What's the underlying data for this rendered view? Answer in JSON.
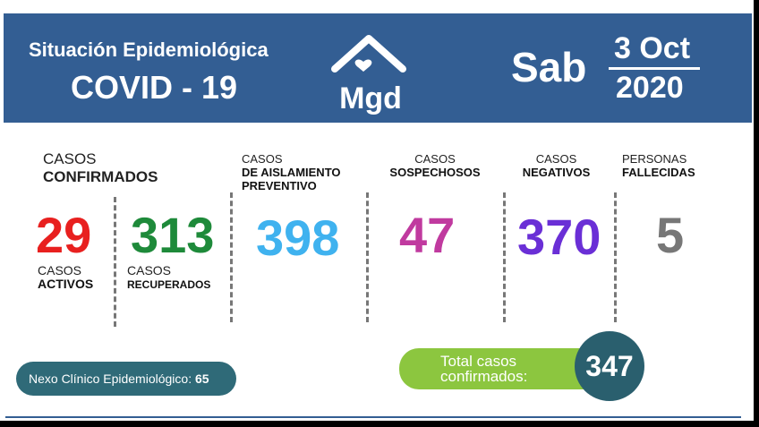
{
  "header": {
    "title_line1": "Situación Epidemiológica",
    "title_line2": "COVID - 19",
    "logo": "Mgd",
    "day": "Sab",
    "date": "3 Oct",
    "year": "2020"
  },
  "stats": {
    "confirmed": {
      "line1": "CASOS",
      "line2": "CONFIRMADOS"
    },
    "active": {
      "value": 29,
      "line1": "CASOS",
      "line2": "ACTIVOS"
    },
    "recovered": {
      "value": 313,
      "line1": "CASOS",
      "line2": "RECUPERADOS"
    },
    "isolation": {
      "line1": "CASOS",
      "line2": "DE AISLAMIENTO",
      "line3": "PREVENTIVO",
      "value": 398
    },
    "suspected": {
      "line1": "CASOS",
      "line2": "SOSPECHOSOS",
      "value": 47
    },
    "negative": {
      "line1": "CASOS",
      "line2": "NEGATIVOS",
      "value": 370
    },
    "deceased": {
      "line1": "PERSONAS",
      "line2": "FALLECIDAS",
      "value": 5
    }
  },
  "footer": {
    "nexo_label": "Nexo Clínico Epidemiológico:",
    "nexo_value": 65,
    "total_line1": "Total casos",
    "total_line2": "confirmados:",
    "total_value": 347
  }
}
